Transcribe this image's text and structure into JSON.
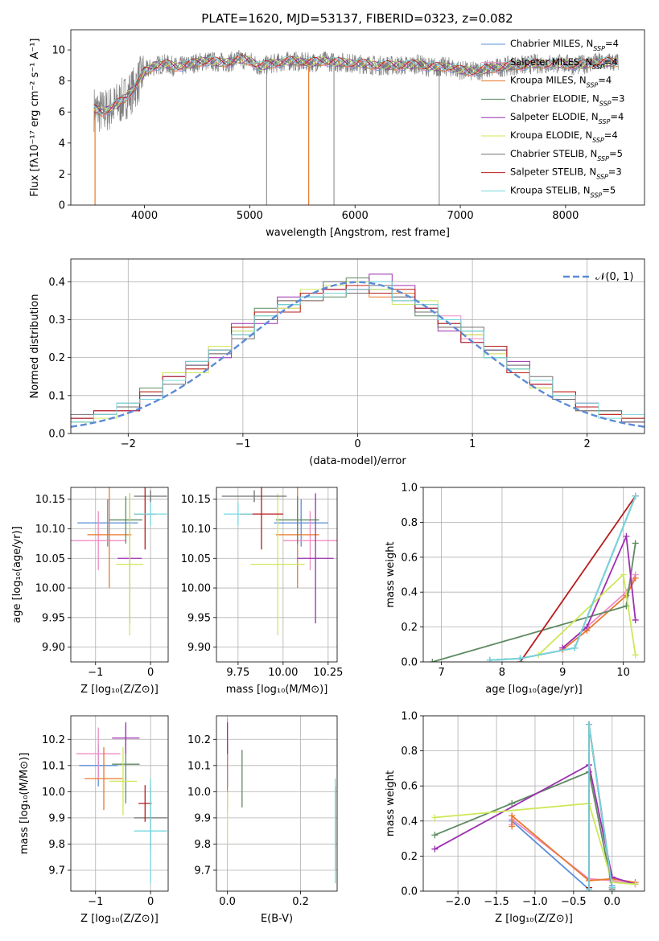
{
  "page": {
    "title": "PLATE=1620, MJD=53137, FIBERID=0323, z=0.082"
  },
  "colors": {
    "chabrier_miles": "#5a8fd8",
    "salpeter_miles": "#f08bc4",
    "kroupa_miles": "#e8792c",
    "chabrier_elodie": "#5e8a62",
    "salpeter_elodie": "#9c2fb0",
    "kroupa_elodie": "#cde85a",
    "chabrier_stelib": "#707070",
    "salpeter_stelib": "#b81c1c",
    "kroupa_stelib": "#74d8df",
    "normal": "#5b8bd6"
  },
  "chart_data": [
    {
      "id": "spectrum",
      "type": "line",
      "title": "PLATE=1620, MJD=53137, FIBERID=0323, z=0.082",
      "xlabel": "wavelength [Angstrom, rest frame]",
      "ylabel": "Flux [fλ10⁻¹⁷ erg cm⁻² s⁻¹ A⁻¹]",
      "xlim": [
        3300,
        8750
      ],
      "ylim": [
        0,
        11.3
      ],
      "xticks": [
        "4000",
        "5000",
        "6000",
        "7000",
        "8000"
      ],
      "yticks": [
        "0",
        "2",
        "4",
        "6",
        "8",
        "10"
      ],
      "legend_position": "right",
      "series": [
        {
          "name": "Chabrier MILES, N_SSP=4"
        },
        {
          "name": "Salpeter MILES, N_SSP=4"
        },
        {
          "name": "Kroupa MILES, N_SSP=4"
        },
        {
          "name": "Chabrier ELODIE, N_SSP=3"
        },
        {
          "name": "Salpeter ELODIE, N_SSP=4"
        },
        {
          "name": "Kroupa ELODIE, N_SSP=4"
        },
        {
          "name": "Chabrier STELIB, N_SSP=5"
        },
        {
          "name": "Salpeter STELIB, N_SSP=3"
        },
        {
          "name": "Kroupa STELIB, N_SSP=5"
        }
      ],
      "observed_spectrum": {
        "x": [
          3520,
          3600,
          3700,
          3800,
          3900,
          4000,
          4100,
          4200,
          4300,
          4400,
          4500,
          4600,
          4700,
          4800,
          4900,
          5000,
          5100,
          5200,
          5300,
          5400,
          5500,
          5600,
          5700,
          5800,
          5900,
          6000,
          6100,
          6200,
          6300,
          6400,
          6500,
          6600,
          6700,
          6800,
          6900,
          7000,
          7100,
          7200,
          7300,
          7400,
          7500,
          7600,
          7700,
          7800,
          7900,
          8000,
          8100,
          8200,
          8300,
          8400,
          8500
        ],
        "y": [
          6.2,
          6.0,
          6.3,
          6.8,
          7.5,
          8.6,
          9.0,
          9.1,
          8.9,
          9.0,
          9.2,
          9.3,
          9.2,
          9.2,
          9.4,
          9.3,
          8.9,
          9.1,
          9.2,
          9.3,
          9.2,
          9.2,
          9.3,
          9.2,
          9.2,
          9.1,
          9.1,
          9.0,
          9.0,
          9.0,
          9.0,
          9.1,
          8.9,
          8.9,
          8.9,
          8.7,
          8.6,
          8.7,
          8.8,
          8.9,
          9.0,
          9.0,
          9.1,
          9.1,
          9.1,
          9.1,
          9.0,
          9.1,
          9.2,
          9.2,
          9.2
        ]
      }
    },
    {
      "id": "residuals",
      "type": "bar",
      "xlabel": "(data-model)/error",
      "ylabel": "Normed distribution",
      "xlim": [
        -2.5,
        2.5
      ],
      "ylim": [
        0,
        0.46
      ],
      "xticks": [
        "−2",
        "−1",
        "0",
        "1",
        "2"
      ],
      "yticks": [
        "0.0",
        "0.1",
        "0.2",
        "0.3",
        "0.4"
      ],
      "legend": [
        "𝒩(0, 1)"
      ],
      "normal_curve": {
        "mean": 0,
        "sigma": 1
      },
      "bin_centers": [
        -2.4,
        -2.2,
        -2.0,
        -1.8,
        -1.6,
        -1.4,
        -1.2,
        -1.0,
        -0.8,
        -0.6,
        -0.4,
        -0.2,
        0.0,
        0.2,
        0.4,
        0.6,
        0.8,
        1.0,
        1.2,
        1.4,
        1.6,
        1.8,
        2.0,
        2.2,
        2.4
      ],
      "series": [
        {
          "values": [
            0.04,
            0.05,
            0.07,
            0.1,
            0.15,
            0.18,
            0.22,
            0.27,
            0.31,
            0.34,
            0.36,
            0.37,
            0.4,
            0.38,
            0.36,
            0.33,
            0.3,
            0.27,
            0.22,
            0.17,
            0.14,
            0.1,
            0.07,
            0.06,
            0.04
          ]
        },
        {
          "values": [
            0.03,
            0.05,
            0.06,
            0.11,
            0.14,
            0.19,
            0.23,
            0.26,
            0.3,
            0.33,
            0.37,
            0.38,
            0.37,
            0.39,
            0.35,
            0.32,
            0.31,
            0.25,
            0.21,
            0.18,
            0.13,
            0.09,
            0.08,
            0.05,
            0.04
          ]
        },
        {
          "values": [
            0.04,
            0.06,
            0.07,
            0.09,
            0.16,
            0.17,
            0.21,
            0.28,
            0.32,
            0.35,
            0.35,
            0.39,
            0.38,
            0.36,
            0.37,
            0.34,
            0.28,
            0.26,
            0.23,
            0.16,
            0.12,
            0.11,
            0.06,
            0.05,
            0.03
          ]
        },
        {
          "values": [
            0.03,
            0.05,
            0.08,
            0.12,
            0.14,
            0.19,
            0.22,
            0.26,
            0.33,
            0.34,
            0.36,
            0.36,
            0.41,
            0.37,
            0.35,
            0.31,
            0.29,
            0.27,
            0.2,
            0.17,
            0.14,
            0.09,
            0.07,
            0.06,
            0.04
          ]
        },
        {
          "values": [
            0.04,
            0.06,
            0.06,
            0.1,
            0.15,
            0.18,
            0.2,
            0.29,
            0.29,
            0.36,
            0.37,
            0.38,
            0.38,
            0.42,
            0.39,
            0.33,
            0.27,
            0.24,
            0.22,
            0.19,
            0.13,
            0.1,
            0.08,
            0.05,
            0.03
          ]
        },
        {
          "values": [
            0.03,
            0.04,
            0.07,
            0.11,
            0.16,
            0.16,
            0.23,
            0.27,
            0.31,
            0.33,
            0.38,
            0.39,
            0.4,
            0.38,
            0.34,
            0.35,
            0.3,
            0.26,
            0.21,
            0.17,
            0.12,
            0.1,
            0.07,
            0.05,
            0.04
          ]
        },
        {
          "values": [
            0.05,
            0.05,
            0.07,
            0.1,
            0.13,
            0.18,
            0.21,
            0.25,
            0.3,
            0.35,
            0.35,
            0.4,
            0.37,
            0.39,
            0.36,
            0.32,
            0.28,
            0.28,
            0.22,
            0.18,
            0.15,
            0.09,
            0.06,
            0.06,
            0.03
          ]
        },
        {
          "values": [
            0.04,
            0.06,
            0.06,
            0.11,
            0.15,
            0.17,
            0.22,
            0.28,
            0.32,
            0.32,
            0.37,
            0.38,
            0.39,
            0.37,
            0.38,
            0.33,
            0.29,
            0.24,
            0.23,
            0.16,
            0.13,
            0.11,
            0.07,
            0.05,
            0.04
          ]
        },
        {
          "values": [
            0.03,
            0.05,
            0.08,
            0.09,
            0.14,
            0.19,
            0.22,
            0.26,
            0.31,
            0.34,
            0.36,
            0.37,
            0.38,
            0.4,
            0.35,
            0.34,
            0.3,
            0.27,
            0.2,
            0.17,
            0.14,
            0.1,
            0.08,
            0.04,
            0.05
          ]
        }
      ]
    },
    {
      "id": "z_vs_age",
      "type": "scatter",
      "xlabel": "Z [log₁₀(Z/Z⊙)]",
      "ylabel": "age  [log₁₀(age/yr)]",
      "xlim": [
        -1.45,
        0.32
      ],
      "ylim": [
        9.875,
        10.17
      ],
      "xticks": [
        "−1",
        "0"
      ],
      "yticks": [
        "9.90",
        "9.95",
        "10.00",
        "10.05",
        "10.10",
        "10.15"
      ],
      "points": [
        {
          "x": -0.78,
          "y": 10.11,
          "xerr": 0.55,
          "yerr": 0.04
        },
        {
          "x": -0.95,
          "y": 10.08,
          "xerr": 0.5,
          "yerr": 0.05
        },
        {
          "x": -0.75,
          "y": 10.09,
          "xerr": 0.4,
          "yerr": 0.09
        },
        {
          "x": -0.45,
          "y": 10.115,
          "xerr": 0.3,
          "yerr": 0.04
        },
        {
          "x": -0.38,
          "y": 10.05,
          "xerr": 0.22,
          "yerr": 0.11
        },
        {
          "x": -0.38,
          "y": 10.04,
          "xerr": 0.25,
          "yerr": 0.12
        },
        {
          "x": 0.0,
          "y": 10.155,
          "xerr": 0.3,
          "yerr": 0.01
        },
        {
          "x": -0.1,
          "y": 10.125,
          "xerr": 0.2,
          "yerr": 0.06
        },
        {
          "x": 0.0,
          "y": 10.125,
          "xerr": 0.3,
          "yerr": 0.02
        }
      ]
    },
    {
      "id": "mass_vs_age",
      "type": "scatter",
      "xlabel": "mass [log₁₀(M/M⊙)]",
      "ylabel": "",
      "xlim": [
        9.63,
        10.3
      ],
      "ylim": [
        9.875,
        10.17
      ],
      "xticks": [
        "9.75",
        "10.00",
        "10.25"
      ],
      "yticks": [
        "9.90",
        "9.95",
        "10.00",
        "10.05",
        "10.10",
        "10.15"
      ],
      "points": [
        {
          "x": 10.1,
          "y": 10.11,
          "xerr": 0.15,
          "yerr": 0.04
        },
        {
          "x": 10.15,
          "y": 10.08,
          "xerr": 0.15,
          "yerr": 0.05
        },
        {
          "x": 10.08,
          "y": 10.09,
          "xerr": 0.12,
          "yerr": 0.09
        },
        {
          "x": 10.08,
          "y": 10.115,
          "xerr": 0.12,
          "yerr": 0.04
        },
        {
          "x": 10.18,
          "y": 10.05,
          "xerr": 0.1,
          "yerr": 0.11
        },
        {
          "x": 9.97,
          "y": 10.04,
          "xerr": 0.15,
          "yerr": 0.12
        },
        {
          "x": 9.84,
          "y": 10.155,
          "xerr": 0.18,
          "yerr": 0.01
        },
        {
          "x": 9.88,
          "y": 10.125,
          "xerr": 0.12,
          "yerr": 0.06
        },
        {
          "x": 9.75,
          "y": 10.125,
          "xerr": 0.08,
          "yerr": 0.02
        }
      ]
    },
    {
      "id": "age_vs_weight",
      "type": "line",
      "xlabel": "age  [log₁₀(age/yr)]",
      "ylabel": "mass weight",
      "xlim": [
        6.7,
        10.35
      ],
      "ylim": [
        0,
        1.0
      ],
      "xticks": [
        "7",
        "8",
        "9",
        "10"
      ],
      "yticks": [
        "0.0",
        "0.2",
        "0.4",
        "0.6",
        "0.8",
        "1.0"
      ],
      "series": [
        {
          "x": [
            7.8,
            8.3,
            9.2,
            10.2
          ],
          "y": [
            0.01,
            0.02,
            0.08,
            0.95
          ]
        },
        {
          "x": [
            9.0,
            9.4,
            10.05,
            10.2
          ],
          "y": [
            0.08,
            0.2,
            0.4,
            0.5
          ]
        },
        {
          "x": [
            9.0,
            9.4,
            10.05,
            10.2
          ],
          "y": [
            0.07,
            0.18,
            0.38,
            0.48
          ]
        },
        {
          "x": [
            6.85,
            10.05,
            10.2
          ],
          "y": [
            0.0,
            0.32,
            0.68
          ]
        },
        {
          "x": [
            9.0,
            9.4,
            10.05,
            10.2
          ],
          "y": [
            0.08,
            0.2,
            0.72,
            0.24
          ]
        },
        {
          "x": [
            8.6,
            10.0,
            10.2
          ],
          "y": [
            0.04,
            0.5,
            0.04
          ]
        },
        {
          "x": [
            7.8,
            8.3,
            9.2,
            10.2
          ],
          "y": [
            0.01,
            0.02,
            0.08,
            0.95
          ]
        },
        {
          "x": [
            8.3,
            10.2
          ],
          "y": [
            0.0,
            0.95
          ]
        },
        {
          "x": [
            7.8,
            8.3,
            9.2,
            10.2
          ],
          "y": [
            0.01,
            0.02,
            0.08,
            0.95
          ]
        }
      ]
    },
    {
      "id": "z_vs_mass",
      "type": "scatter",
      "xlabel": "Z [log₁₀(Z/Z⊙)]",
      "ylabel": "mass [log₁₀(M/M⊙)]",
      "xlim": [
        -1.45,
        0.32
      ],
      "ylim": [
        9.62,
        10.29
      ],
      "xticks": [
        "−1",
        "0"
      ],
      "yticks": [
        "9.7",
        "9.8",
        "9.9",
        "10.0",
        "10.1",
        "10.2"
      ],
      "points": [
        {
          "x": -0.95,
          "y": 10.1,
          "xerr": 0.35,
          "yerr": 0.08
        },
        {
          "x": -0.95,
          "y": 10.145,
          "xerr": 0.4,
          "yerr": 0.1
        },
        {
          "x": -0.85,
          "y": 10.05,
          "xerr": 0.35,
          "yerr": 0.12
        },
        {
          "x": -0.45,
          "y": 10.105,
          "xerr": 0.25,
          "yerr": 0.15
        },
        {
          "x": -0.45,
          "y": 10.205,
          "xerr": 0.25,
          "yerr": 0.06
        },
        {
          "x": -0.5,
          "y": 10.04,
          "xerr": 0.25,
          "yerr": 0.13
        },
        {
          "x": 0.0,
          "y": 9.9,
          "xerr": 0.3,
          "yerr": 0.12
        },
        {
          "x": -0.1,
          "y": 9.955,
          "xerr": 0.12,
          "yerr": 0.07
        },
        {
          "x": 0.0,
          "y": 9.85,
          "xerr": 0.3,
          "yerr": 0.2
        }
      ]
    },
    {
      "id": "ebv_vs_mass",
      "type": "scatter",
      "xlabel": "E(B-V)",
      "ylabel": "",
      "xlim": [
        -0.03,
        0.3
      ],
      "ylim": [
        9.62,
        10.29
      ],
      "xticks": [
        "0.0",
        "0.2"
      ],
      "yticks": [
        "9.7",
        "9.8",
        "9.9",
        "10.0",
        "10.1",
        "10.2"
      ],
      "points": [
        {
          "x": 0.0,
          "y": 10.1,
          "yerr": 0.08
        },
        {
          "x": 0.0,
          "y": 10.18,
          "yerr": 0.1
        },
        {
          "x": 0.0,
          "y": 10.05,
          "yerr": 0.12
        },
        {
          "x": 0.04,
          "y": 10.05,
          "yerr": 0.11
        },
        {
          "x": 0.0,
          "y": 10.205,
          "yerr": 0.06
        },
        {
          "x": 0.0,
          "y": 9.9,
          "yerr": 0.1
        },
        {
          "x": 0.295,
          "y": 9.9,
          "yerr": 0.12
        },
        {
          "x": 0.295,
          "y": 9.86,
          "yerr": 0.16
        },
        {
          "x": 0.295,
          "y": 9.85,
          "yerr": 0.2
        }
      ]
    },
    {
      "id": "z_vs_weight",
      "type": "line",
      "xlabel": "Z [log₁₀(Z/Z⊙)]",
      "ylabel": "mass weight",
      "xlim": [
        -2.45,
        0.42
      ],
      "ylim": [
        0,
        1.0
      ],
      "xticks": [
        "−2.0",
        "−1.5",
        "−1.0",
        "−0.5",
        "0.0"
      ],
      "yticks": [
        "0.0",
        "0.2",
        "0.4",
        "0.6",
        "0.8",
        "1.0"
      ],
      "series": [
        {
          "x": [
            -1.3,
            -0.3,
            -0.3,
            0.0
          ],
          "y": [
            0.4,
            0.01,
            0.95,
            0.03
          ]
        },
        {
          "x": [
            -1.3,
            -1.3,
            -0.3,
            0.0,
            0.3
          ],
          "y": [
            0.38,
            0.41,
            0.07,
            0.06,
            0.04
          ]
        },
        {
          "x": [
            -1.3,
            -1.3,
            -0.3,
            0.0,
            0.3
          ],
          "y": [
            0.37,
            0.43,
            0.06,
            0.07,
            0.05
          ]
        },
        {
          "x": [
            -2.3,
            -1.3,
            -0.3,
            0.0
          ],
          "y": [
            0.32,
            0.5,
            0.68,
            0.02
          ]
        },
        {
          "x": [
            -2.3,
            -0.3,
            0.0,
            0.3
          ],
          "y": [
            0.24,
            0.72,
            0.08,
            0.04
          ]
        },
        {
          "x": [
            -2.3,
            -0.3,
            0.0,
            0.3
          ],
          "y": [
            0.42,
            0.5,
            0.05,
            0.04
          ]
        },
        {
          "x": [
            -0.3,
            -0.3,
            0.0
          ],
          "y": [
            0.01,
            0.95,
            0.01
          ]
        },
        {
          "x": [
            -0.3,
            -0.3,
            0.0
          ],
          "y": [
            0.02,
            0.95,
            0.02
          ]
        },
        {
          "x": [
            -0.3,
            -0.3,
            0.0
          ],
          "y": [
            0.01,
            0.95,
            0.02
          ]
        }
      ]
    }
  ]
}
